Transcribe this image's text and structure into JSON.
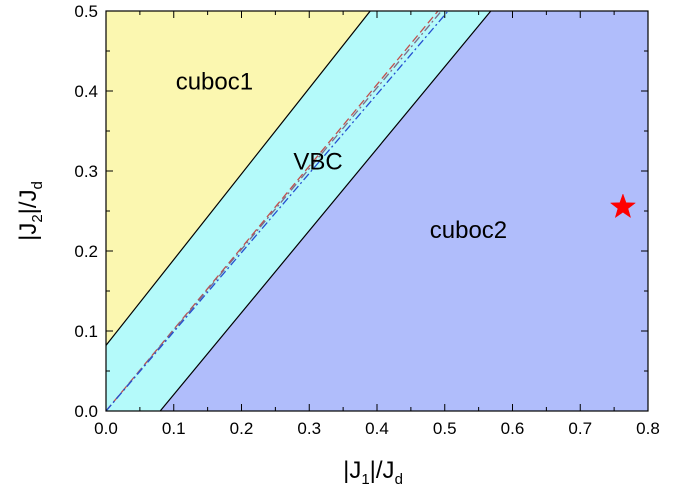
{
  "chart_data": {
    "type": "area",
    "title": "",
    "xlabel": {
      "parts": [
        "|J",
        "1",
        "|/J",
        "d"
      ]
    },
    "ylabel": {
      "parts": [
        "|J",
        "2",
        "|/J",
        "d"
      ]
    },
    "xlim": [
      0.0,
      0.8
    ],
    "ylim": [
      0.0,
      0.5
    ],
    "xticks": [
      0.0,
      0.1,
      0.2,
      0.3,
      0.4,
      0.5,
      0.6,
      0.7,
      0.8
    ],
    "xtick_labels": [
      "0.0",
      "0.1",
      "0.2",
      "0.3",
      "0.4",
      "0.5",
      "0.6",
      "0.7",
      "0.8"
    ],
    "yticks": [
      0.0,
      0.1,
      0.2,
      0.3,
      0.4,
      0.5
    ],
    "ytick_labels": [
      "0.0",
      "0.1",
      "0.2",
      "0.3",
      "0.4",
      "0.5"
    ],
    "grid": false,
    "regions": [
      {
        "label": "cuboc1",
        "color": "#fbf7b0",
        "polygon": [
          [
            0.0,
            0.082
          ],
          [
            0.39,
            0.5
          ],
          [
            0.0,
            0.5
          ]
        ],
        "label_at": [
          0.16,
          0.41
        ]
      },
      {
        "label": "VBC",
        "color": "#b4fafa",
        "polygon": [
          [
            0.0,
            0.0
          ],
          [
            0.08,
            0.0
          ],
          [
            0.568,
            0.5
          ],
          [
            0.39,
            0.5
          ],
          [
            0.0,
            0.082
          ]
        ],
        "label_at": [
          0.313,
          0.31
        ]
      },
      {
        "label": "cuboc2",
        "color": "#b0bdfb",
        "polygon": [
          [
            0.08,
            0.0
          ],
          [
            0.8,
            0.0
          ],
          [
            0.8,
            0.5
          ],
          [
            0.568,
            0.5
          ]
        ],
        "label_at": [
          0.535,
          0.224
        ]
      }
    ],
    "boundaries": [
      {
        "style": "solid",
        "color": "#000000",
        "x": [
          0.0,
          0.39
        ],
        "y": [
          0.082,
          0.5
        ]
      },
      {
        "style": "solid",
        "color": "#000000",
        "x": [
          0.08,
          0.568
        ],
        "y": [
          0.0,
          0.5
        ]
      },
      {
        "style": "dash",
        "color": "#c0504d",
        "x": [
          0.0,
          0.49
        ],
        "y": [
          0.0,
          0.5
        ]
      },
      {
        "style": "dashdot",
        "color": "#7b6b8a",
        "x": [
          0.0,
          0.495
        ],
        "y": [
          0.0,
          0.5
        ]
      },
      {
        "style": "dashdot",
        "color": "#2550d0",
        "x": [
          0.0,
          0.505
        ],
        "y": [
          0.0,
          0.5
        ]
      }
    ],
    "marker": {
      "shape": "star",
      "color": "#ff0000",
      "x": 0.763,
      "y": 0.255
    }
  }
}
